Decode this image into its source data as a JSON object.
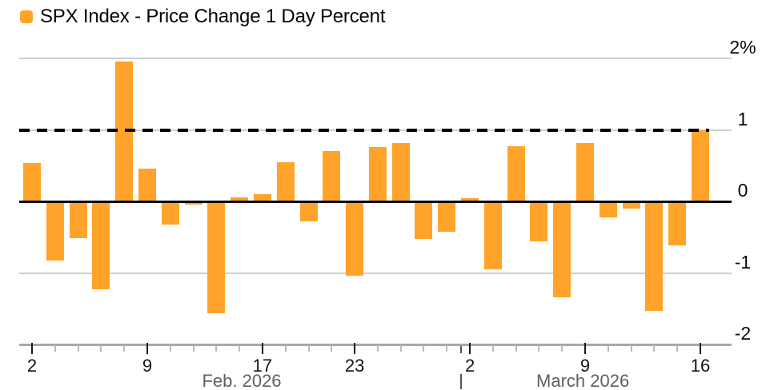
{
  "legend": {
    "series_label": "SPX Index - Price Change 1 Day Percent"
  },
  "colors": {
    "series": "#ffa32b",
    "grid": "#cecece",
    "zero_line": "#000000",
    "reference_line": "#000000",
    "axis": "#a8a8a8",
    "minor_tick": "#b9b9b9",
    "major_tick": "#1a1a1a",
    "month_label": "#606060",
    "month_separator": "#555555"
  },
  "chart_data": {
    "type": "bar",
    "title": "SPX Index - Price Change 1 Day Percent",
    "legend_position": "top-left",
    "grid": true,
    "ylim": [
      -2,
      2
    ],
    "categories": [
      "Feb 2",
      "Feb 3",
      "Feb 4",
      "Feb 5",
      "Feb 6",
      "Feb 9",
      "Feb 10",
      "Feb 11",
      "Feb 12",
      "Feb 13",
      "Feb 17",
      "Feb 18",
      "Feb 19",
      "Feb 20",
      "Feb 23",
      "Feb 24",
      "Feb 25",
      "Feb 26",
      "Feb 27",
      "Mar 2",
      "Mar 3",
      "Mar 4",
      "Mar 5",
      "Mar 6",
      "Mar 9",
      "Mar 10",
      "Mar 11",
      "Mar 12",
      "Mar 13",
      "Mar 16"
    ],
    "series": [
      {
        "name": "SPX Index - Price Change 1 Day Percent",
        "color": "#ffa32b",
        "values": [
          0.54,
          -0.83,
          -0.51,
          -1.23,
          1.96,
          0.46,
          -0.32,
          -0.03,
          -1.56,
          0.06,
          0.1,
          0.55,
          -0.28,
          0.7,
          -1.04,
          0.76,
          0.82,
          -0.53,
          -0.42,
          0.05,
          -0.95,
          0.77,
          -0.56,
          -1.34,
          0.82,
          -0.22,
          -0.1,
          -1.53,
          -0.61,
          1.0
        ]
      }
    ],
    "yticks": [
      {
        "value": 2,
        "label": "2%"
      },
      {
        "value": 1,
        "label": "1"
      },
      {
        "value": 0,
        "label": "0"
      },
      {
        "value": -1,
        "label": "-1"
      },
      {
        "value": -2,
        "label": "-2"
      }
    ],
    "xticks": [
      {
        "index": 0,
        "label": "2"
      },
      {
        "index": 5,
        "label": "9"
      },
      {
        "index": 10,
        "label": "17"
      },
      {
        "index": 14,
        "label": "23"
      },
      {
        "index": 19,
        "label": "2"
      },
      {
        "index": 24,
        "label": "9"
      },
      {
        "index": 29,
        "label": "16"
      }
    ],
    "month_labels": [
      {
        "label": "Feb. 2026",
        "center_index": 9.1
      },
      {
        "label": "March 2026",
        "center_index": 23.9
      }
    ],
    "month_separator_after_index": 18,
    "reference_line": {
      "value": 1,
      "style": "dashed"
    }
  }
}
